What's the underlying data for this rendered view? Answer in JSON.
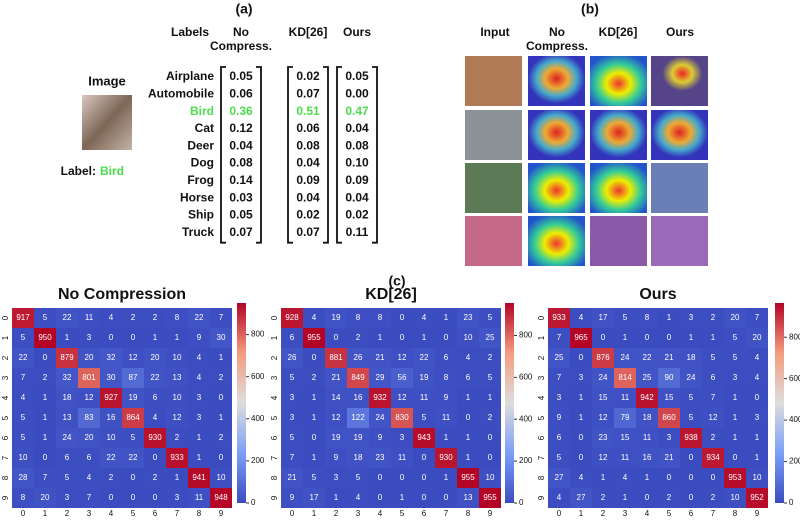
{
  "panel_a": {
    "label": "(a)",
    "image_caption": "Image",
    "true_label_text": "Label:",
    "true_label": "Bird",
    "highlight_color": "#4cdc4c",
    "columns": [
      "Labels",
      "No Compress.",
      "KD[26]",
      "Ours"
    ],
    "rows": [
      {
        "label": "Airplane",
        "values": [
          "0.05",
          "0.02",
          "0.05"
        ]
      },
      {
        "label": "Automobile",
        "values": [
          "0.06",
          "0.07",
          "0.00"
        ]
      },
      {
        "label": "Bird",
        "values": [
          "0.36",
          "0.51",
          "0.47"
        ]
      },
      {
        "label": "Cat",
        "values": [
          "0.12",
          "0.06",
          "0.04"
        ]
      },
      {
        "label": "Deer",
        "values": [
          "0.04",
          "0.08",
          "0.08"
        ]
      },
      {
        "label": "Dog",
        "values": [
          "0.08",
          "0.04",
          "0.10"
        ]
      },
      {
        "label": "Frog",
        "values": [
          "0.14",
          "0.09",
          "0.09"
        ]
      },
      {
        "label": "Horse",
        "values": [
          "0.03",
          "0.04",
          "0.04"
        ]
      },
      {
        "label": "Ship",
        "values": [
          "0.05",
          "0.02",
          "0.02"
        ]
      },
      {
        "label": "Truck",
        "values": [
          "0.07",
          "0.07",
          "0.11"
        ]
      }
    ]
  },
  "panel_b": {
    "label": "(b)",
    "columns": [
      "Input",
      "No Compress.",
      "KD[26]",
      "Ours"
    ]
  },
  "panel_c": {
    "label": "(c)",
    "matrices": [
      {
        "title": "No Compression",
        "ticks": [
          0,
          1,
          2,
          3,
          4,
          5,
          6,
          7,
          8,
          9
        ],
        "vlim": [
          0,
          950
        ],
        "cbar_ticks": [
          0,
          200,
          400,
          600,
          800
        ],
        "values": [
          [
            917,
            5,
            22,
            11,
            4,
            2,
            2,
            8,
            22,
            7
          ],
          [
            5,
            950,
            1,
            3,
            0,
            0,
            1,
            1,
            9,
            30
          ],
          [
            22,
            0,
            879,
            20,
            32,
            12,
            20,
            10,
            4,
            1
          ],
          [
            7,
            2,
            32,
            801,
            30,
            87,
            22,
            13,
            4,
            2
          ],
          [
            4,
            1,
            18,
            12,
            927,
            19,
            6,
            10,
            3,
            0
          ],
          [
            5,
            1,
            13,
            83,
            16,
            864,
            4,
            12,
            3,
            1
          ],
          [
            5,
            1,
            24,
            20,
            10,
            5,
            930,
            2,
            1,
            2
          ],
          [
            10,
            0,
            6,
            6,
            22,
            22,
            0,
            933,
            1,
            0
          ],
          [
            28,
            7,
            5,
            4,
            2,
            0,
            2,
            1,
            941,
            10
          ],
          [
            8,
            20,
            3,
            7,
            0,
            0,
            0,
            3,
            11,
            948
          ]
        ]
      },
      {
        "title": "KD[26]",
        "ticks": [
          0,
          1,
          2,
          3,
          4,
          5,
          6,
          7,
          8,
          9
        ],
        "vlim": [
          0,
          955
        ],
        "cbar_ticks": [
          0,
          200,
          400,
          600,
          800
        ],
        "values": [
          [
            928,
            4,
            19,
            8,
            8,
            0,
            4,
            1,
            23,
            5
          ],
          [
            6,
            955,
            0,
            2,
            1,
            0,
            1,
            0,
            10,
            25
          ],
          [
            26,
            0,
            881,
            26,
            21,
            12,
            22,
            6,
            4,
            2
          ],
          [
            5,
            2,
            21,
            849,
            29,
            56,
            19,
            8,
            6,
            5
          ],
          [
            3,
            1,
            14,
            16,
            932,
            12,
            11,
            9,
            1,
            1
          ],
          [
            3,
            1,
            12,
            122,
            24,
            830,
            5,
            11,
            0,
            2
          ],
          [
            5,
            0,
            19,
            19,
            9,
            3,
            943,
            1,
            1,
            0
          ],
          [
            7,
            1,
            9,
            18,
            23,
            11,
            0,
            930,
            1,
            0
          ],
          [
            21,
            5,
            3,
            5,
            0,
            0,
            0,
            1,
            955,
            10
          ],
          [
            9,
            17,
            1,
            4,
            0,
            1,
            0,
            0,
            13,
            955
          ]
        ]
      },
      {
        "title": "Ours",
        "ticks": [
          0,
          1,
          2,
          3,
          4,
          5,
          6,
          7,
          8,
          9
        ],
        "vlim": [
          0,
          965
        ],
        "cbar_ticks": [
          0,
          200,
          400,
          600,
          800
        ],
        "values": [
          [
            933,
            4,
            17,
            5,
            8,
            1,
            3,
            2,
            20,
            7
          ],
          [
            7,
            965,
            0,
            1,
            0,
            0,
            1,
            1,
            5,
            20
          ],
          [
            25,
            0,
            876,
            24,
            22,
            21,
            18,
            5,
            5,
            4
          ],
          [
            7,
            3,
            24,
            814,
            25,
            90,
            24,
            6,
            3,
            4
          ],
          [
            3,
            1,
            15,
            11,
            942,
            15,
            5,
            7,
            1,
            0
          ],
          [
            9,
            1,
            12,
            79,
            18,
            860,
            5,
            12,
            1,
            3
          ],
          [
            6,
            0,
            23,
            15,
            11,
            3,
            938,
            2,
            1,
            1
          ],
          [
            5,
            0,
            12,
            11,
            16,
            21,
            0,
            934,
            0,
            1
          ],
          [
            27,
            4,
            1,
            4,
            1,
            0,
            0,
            0,
            953,
            10
          ],
          [
            4,
            27,
            2,
            1,
            0,
            2,
            0,
            2,
            10,
            952
          ]
        ]
      }
    ]
  }
}
